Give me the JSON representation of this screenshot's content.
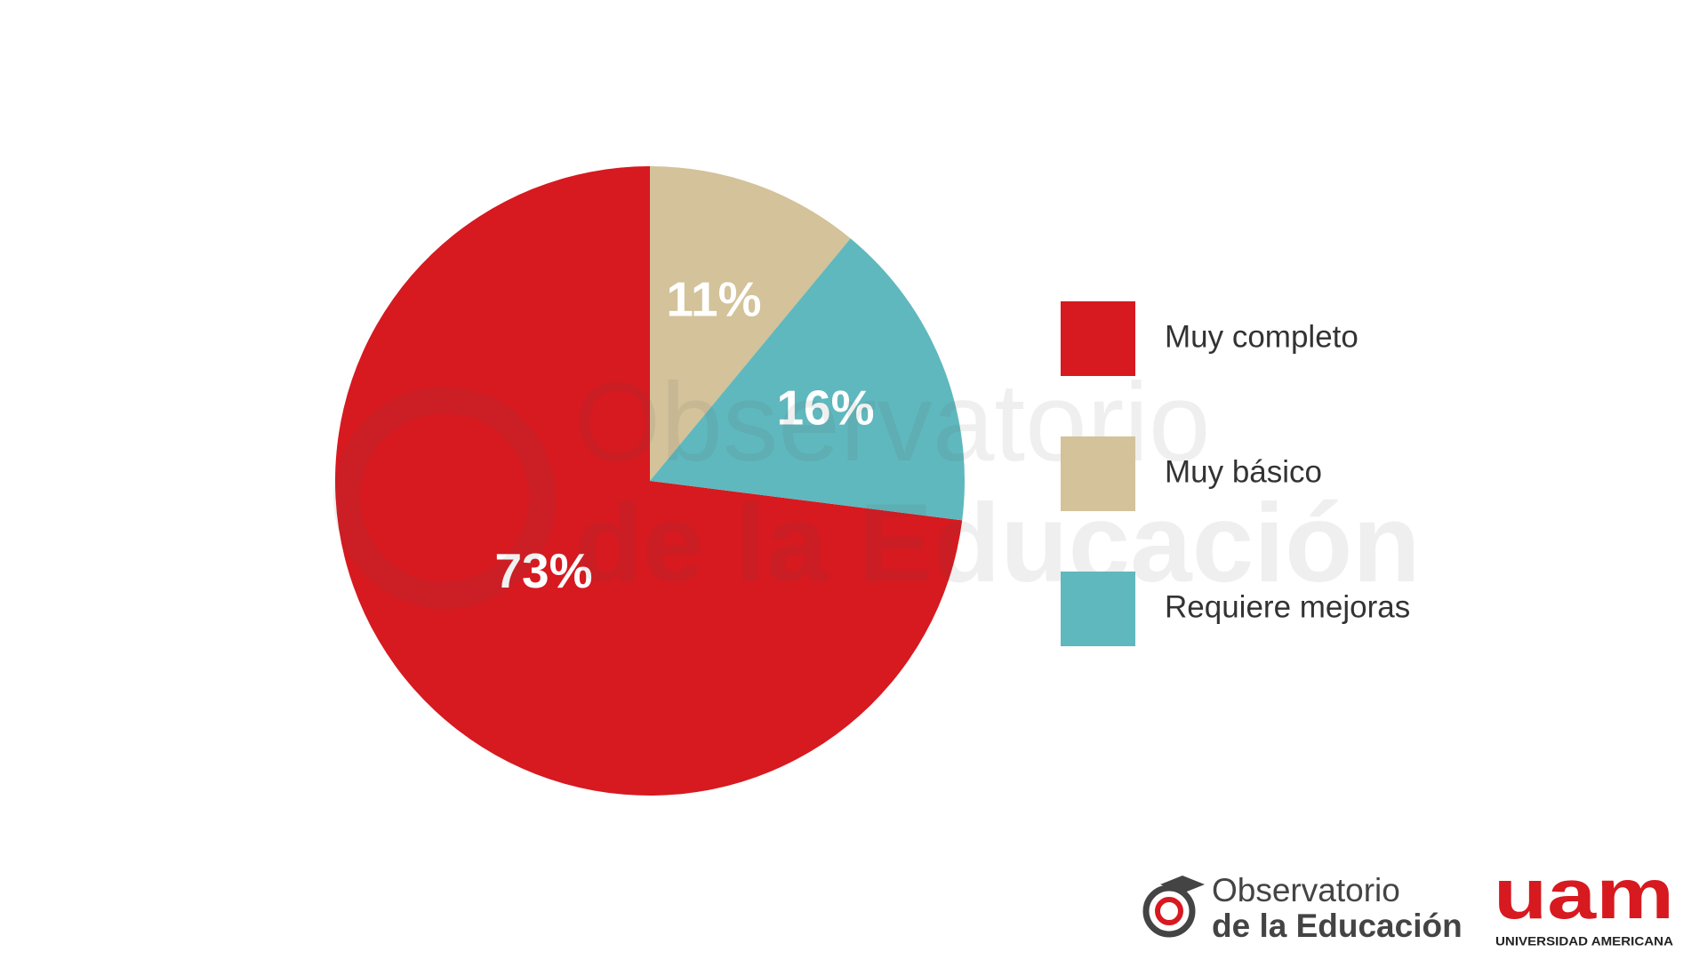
{
  "chart_data": {
    "type": "pie",
    "categories": [
      "Muy completo",
      "Muy básico",
      "Requiere mejoras"
    ],
    "values": [
      73,
      11,
      16
    ],
    "value_labels": [
      "73%",
      "11%",
      "16%"
    ],
    "colors": [
      "#d71920",
      "#d3c29a",
      "#5fb8bd"
    ],
    "legend": "right"
  },
  "footer": {
    "observatorio_line1": "Observatorio",
    "observatorio_line2": "de la Educación",
    "uam_logo": "uam",
    "uam_name": "UNIVERSIDAD AMERICANA"
  }
}
